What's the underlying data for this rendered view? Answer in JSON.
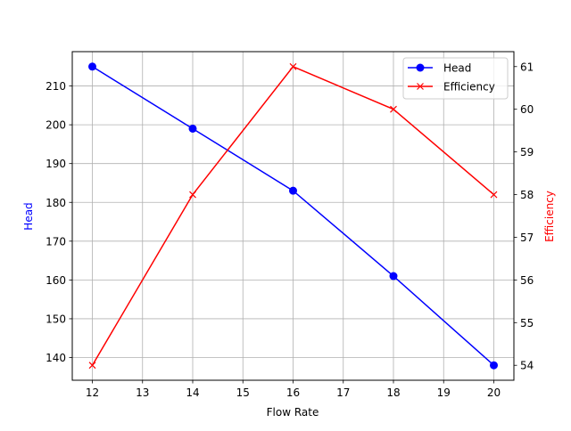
{
  "chart_data": {
    "type": "line",
    "title": "",
    "xlabel": "Flow Rate",
    "ylabel": "Head",
    "ylabel_right": "Efficiency",
    "x": [
      12,
      14,
      16,
      18,
      20
    ],
    "xlim": [
      11.6,
      20.4
    ],
    "ylim": [
      134.15,
      218.85
    ],
    "ylim_right": [
      53.65,
      61.35
    ],
    "x_ticks": [
      "12",
      "13",
      "14",
      "15",
      "16",
      "17",
      "18",
      "19",
      "20"
    ],
    "y_ticks": [
      "140",
      "150",
      "160",
      "170",
      "180",
      "190",
      "200",
      "210"
    ],
    "y_ticks_right": [
      "54",
      "55",
      "56",
      "57",
      "58",
      "59",
      "60",
      "61"
    ],
    "grid": true,
    "legend_position": "upper right",
    "series": [
      {
        "name": "Head",
        "axis": "left",
        "color": "#0000ff",
        "marker": "circle",
        "values": [
          215,
          199,
          183,
          161,
          138
        ]
      },
      {
        "name": "Efficiency",
        "axis": "right",
        "color": "#ff0000",
        "marker": "x",
        "values": [
          54,
          58,
          61,
          60,
          58
        ]
      }
    ]
  },
  "legend": {
    "items": [
      {
        "label": "Head",
        "color": "#0000ff",
        "marker": "circle"
      },
      {
        "label": "Efficiency",
        "color": "#ff0000",
        "marker": "x"
      }
    ]
  }
}
